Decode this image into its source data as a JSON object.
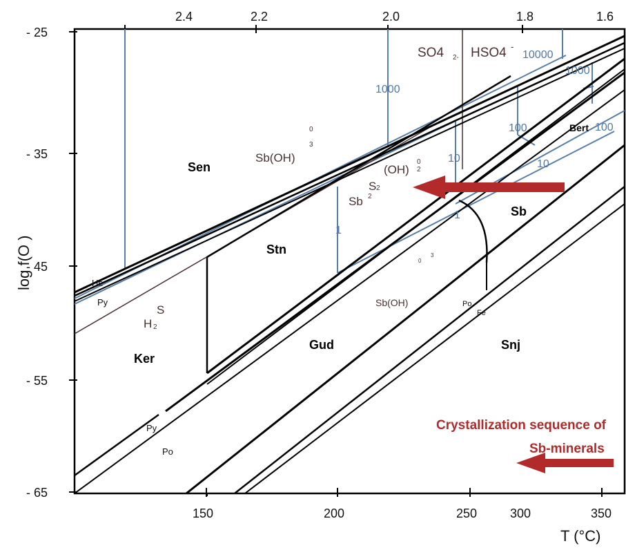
{
  "axes": {
    "y_title": "log  f(O  )",
    "x_title": "T (°C)",
    "y_ticks": [
      "- 25",
      "- 35",
      "- 45",
      "- 55",
      "- 65"
    ],
    "x_ticks": [
      "150",
      "200",
      "250",
      "300",
      "350"
    ],
    "top_ticks": [
      "2.4",
      "2.2",
      "2.0",
      "1.8",
      "1.6"
    ]
  },
  "fields": {
    "sen": "Sen",
    "stn": "Stn",
    "gud": "Gud",
    "snj": "Snj",
    "ker": "Ker",
    "sb": "Sb",
    "bert": "Bert"
  },
  "species": {
    "sboh_upper": "Sb(OH)",
    "sboh_upper_sup": "0",
    "sboh_upper_sub": "3",
    "oh2": "(OH)",
    "oh2_sup": "0",
    "oh2_sub": "2",
    "sb2s2_s": "S",
    "sb2s2_s_sub": "2",
    "sb2s2_sb": "Sb",
    "sb2s2_sb_sub": "2",
    "sboh_lower": "Sb(OH)",
    "sboh_lower_sup": "0",
    "sboh_lower_sub": "3",
    "h2": "H",
    "h2_sub": "2",
    "h2s_s": "S",
    "so4": "SO4",
    "so4_charge": "2-",
    "hso4": "HSO4",
    "hso4_charge": "-"
  },
  "minor_labels": {
    "he": "He",
    "py_upper": "Py",
    "py_lower": "Py",
    "po_lower": "Po",
    "po_fe": "Po",
    "fe": "Fe"
  },
  "blue_labels": {
    "c10000": "10000",
    "c1000_right": "1000",
    "c1000": "1000",
    "c100_mid": "100",
    "c100_right": "100",
    "c10_mid": "10",
    "c10_right": "10",
    "c1_mid": "1",
    "c1_right": "1"
  },
  "annotation": {
    "line1": "Crystallization sequence of",
    "line2": "Sb-minerals"
  },
  "colors": {
    "arrow": "#b22a2a",
    "contour": "#5a7fa6",
    "aqueous": "#4a3030"
  }
}
